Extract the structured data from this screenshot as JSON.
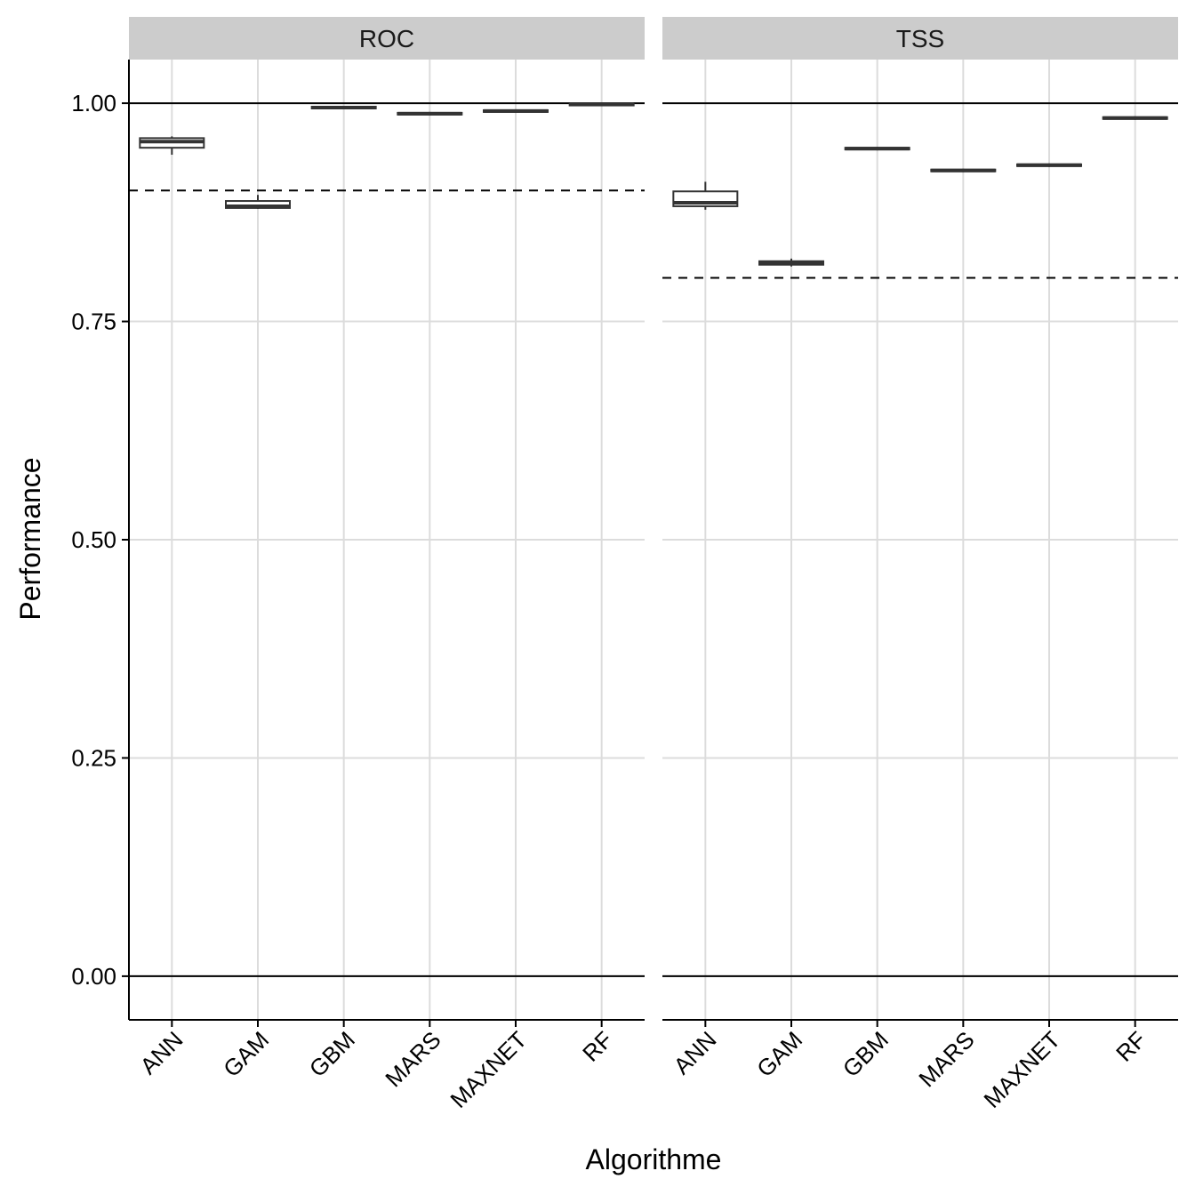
{
  "chart_data": {
    "type": "boxplot",
    "xlabel": "Algorithme",
    "ylabel": "Performance",
    "ylim": [
      -0.05,
      1.05
    ],
    "yticks": [
      0.0,
      0.25,
      0.5,
      0.75,
      1.0
    ],
    "ytick_labels": [
      "0.00",
      "0.25",
      "0.50",
      "0.75",
      "1.00"
    ],
    "categories": [
      "ANN",
      "GAM",
      "GBM",
      "MARS",
      "MAXNET",
      "RF"
    ],
    "grid": true,
    "reference_lines": [
      0.0,
      1.0
    ],
    "facets": [
      {
        "label": "ROC",
        "threshold": 0.9,
        "boxes": [
          {
            "category": "ANN",
            "min": 0.941,
            "q1": 0.949,
            "median": 0.956,
            "q3": 0.96,
            "max": 0.962
          },
          {
            "category": "GAM",
            "min": 0.879,
            "q1": 0.88,
            "median": 0.882,
            "q3": 0.888,
            "max": 0.895
          },
          {
            "category": "GBM",
            "min": 0.993,
            "q1": 0.994,
            "median": 0.995,
            "q3": 0.996,
            "max": 0.997
          },
          {
            "category": "MARS",
            "min": 0.986,
            "q1": 0.987,
            "median": 0.988,
            "q3": 0.989,
            "max": 0.99
          },
          {
            "category": "MAXNET",
            "min": 0.989,
            "q1": 0.99,
            "median": 0.991,
            "q3": 0.992,
            "max": 0.993
          },
          {
            "category": "RF",
            "min": 0.998,
            "q1": 0.998,
            "median": 0.999,
            "q3": 0.999,
            "max": 1.0
          }
        ]
      },
      {
        "label": "TSS",
        "threshold": 0.8,
        "boxes": [
          {
            "category": "ANN",
            "min": 0.878,
            "q1": 0.882,
            "median": 0.886,
            "q3": 0.899,
            "max": 0.91
          },
          {
            "category": "GAM",
            "min": 0.813,
            "q1": 0.815,
            "median": 0.817,
            "q3": 0.819,
            "max": 0.822
          },
          {
            "category": "GBM",
            "min": 0.946,
            "q1": 0.947,
            "median": 0.948,
            "q3": 0.949,
            "max": 0.95
          },
          {
            "category": "MARS",
            "min": 0.921,
            "q1": 0.922,
            "median": 0.923,
            "q3": 0.924,
            "max": 0.925
          },
          {
            "category": "MAXNET",
            "min": 0.927,
            "q1": 0.928,
            "median": 0.929,
            "q3": 0.93,
            "max": 0.931
          },
          {
            "category": "RF",
            "min": 0.981,
            "q1": 0.982,
            "median": 0.983,
            "q3": 0.984,
            "max": 0.985
          }
        ]
      }
    ]
  },
  "colors": {
    "strip_fill": "#cccccc",
    "grid": "#dcdcdc",
    "box_stroke": "#333333",
    "box_fill": "#ffffff",
    "axis": "#000000"
  }
}
